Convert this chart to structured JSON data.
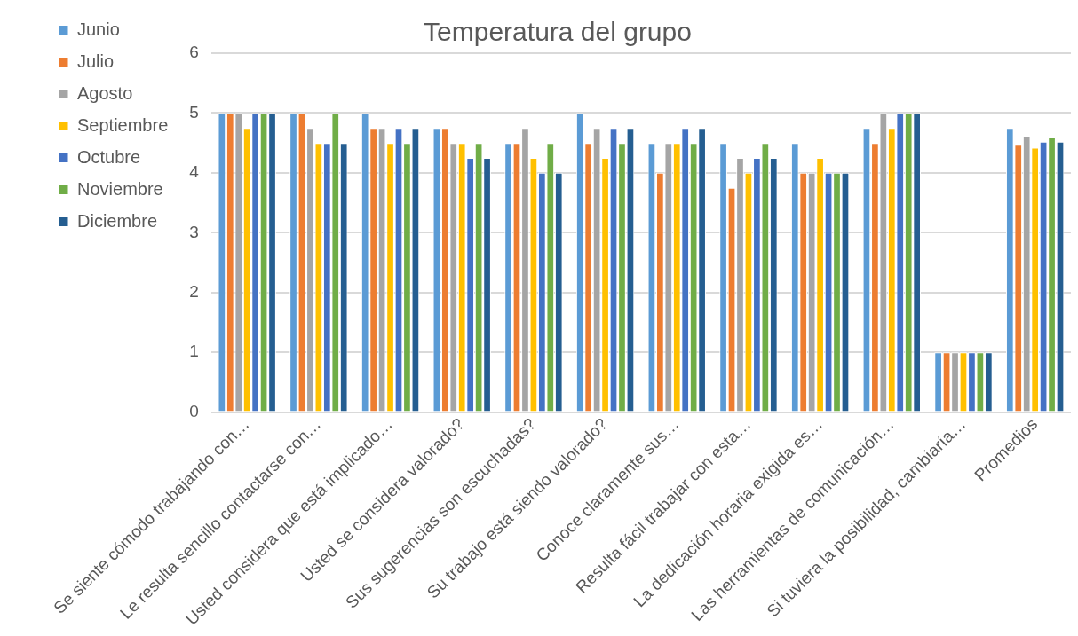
{
  "chart_data": {
    "type": "bar",
    "title": "Temperatura del grupo",
    "categories": [
      "Se siente cómodo trabajando con…",
      "Le resulta sencillo contactarse con…",
      "Usted considera que está implicado…",
      "Usted se considera valorado?",
      "Sus sugerencias son escuchadas?",
      "Su trabajo está siendo valorado?",
      "Conoce claramente sus…",
      "Resulta fácil trabajar con esta…",
      "La dedicación horaria exigida es…",
      "Las herramientas de comunicación…",
      "Si tuviera la posibilidad, cambiaría…",
      "Promedios"
    ],
    "series": [
      {
        "name": "Junio",
        "color": "#5b9bd5",
        "values": [
          5,
          5,
          5,
          4.75,
          4.5,
          5,
          4.5,
          4.5,
          4.5,
          4.75,
          1,
          4.75
        ]
      },
      {
        "name": "Julio",
        "color": "#ed7d31",
        "values": [
          5,
          5,
          4.75,
          4.75,
          4.5,
          4.5,
          4,
          3.75,
          4,
          4.5,
          1,
          4.47
        ]
      },
      {
        "name": "Agosto",
        "color": "#a5a5a5",
        "values": [
          5,
          4.75,
          4.75,
          4.5,
          4.75,
          4.75,
          4.5,
          4.25,
          4,
          5,
          1,
          4.62
        ]
      },
      {
        "name": "Septiembre",
        "color": "#ffc000",
        "values": [
          4.75,
          4.5,
          4.5,
          4.5,
          4.25,
          4.25,
          4.5,
          4,
          4.25,
          4.75,
          1,
          4.42
        ]
      },
      {
        "name": "Octubre",
        "color": "#4472c4",
        "values": [
          5,
          4.5,
          4.75,
          4.25,
          4,
          4.75,
          4.75,
          4.25,
          4,
          5,
          1,
          4.52
        ]
      },
      {
        "name": "Noviembre",
        "color": "#70ad47",
        "values": [
          5,
          5,
          4.5,
          4.5,
          4.5,
          4.5,
          4.5,
          4.5,
          4,
          5,
          1,
          4.59
        ]
      },
      {
        "name": "Diciembre",
        "color": "#255e91",
        "values": [
          5,
          4.5,
          4.75,
          4.25,
          4,
          4.75,
          4.75,
          4.25,
          4,
          5,
          1,
          4.52
        ]
      }
    ],
    "ylim": [
      0,
      6
    ],
    "yticks": [
      0,
      1,
      2,
      3,
      4,
      5,
      6
    ],
    "grid": "y",
    "legend": "left"
  }
}
